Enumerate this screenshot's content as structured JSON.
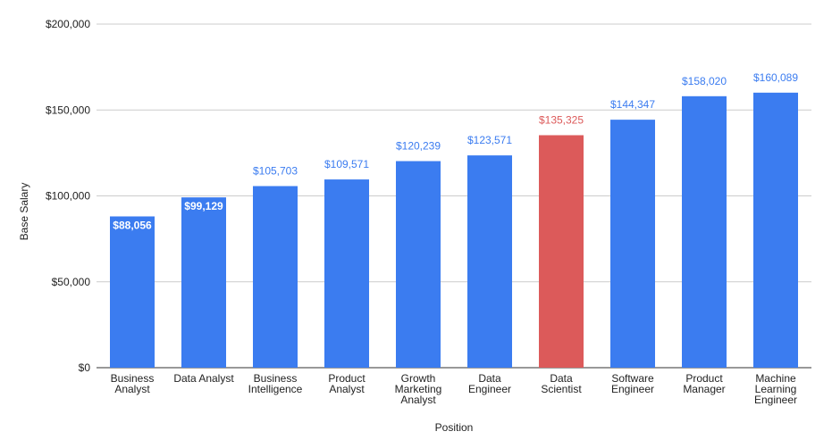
{
  "chart_data": {
    "type": "bar",
    "title": "",
    "xlabel": "Position",
    "ylabel": "Base Salary",
    "ylim": [
      0,
      200000
    ],
    "yticks": [
      0,
      50000,
      100000,
      150000,
      200000
    ],
    "ytick_labels": [
      "$0",
      "$50,000",
      "$100,000",
      "$150,000",
      "$200,000"
    ],
    "grid": true,
    "legend": "none",
    "categories": [
      [
        "Business",
        "Analyst"
      ],
      [
        "Data Analyst"
      ],
      [
        "Business",
        "Intelligence"
      ],
      [
        "Product",
        "Analyst"
      ],
      [
        "Growth",
        "Marketing",
        "Analyst"
      ],
      [
        "Data",
        "Engineer"
      ],
      [
        "Data",
        "Scientist"
      ],
      [
        "Software",
        "Engineer"
      ],
      [
        "Product",
        "Manager"
      ],
      [
        "Machine",
        "Learning",
        "Engineer"
      ]
    ],
    "values": [
      88056,
      99129,
      105703,
      109571,
      120239,
      123571,
      135325,
      144347,
      158020,
      160089
    ],
    "data_labels": [
      "$88,056",
      "$99,129",
      "$105,703",
      "$109,571",
      "$120,239",
      "$123,571",
      "$135,325",
      "$144,347",
      "$158,020",
      "$160,089"
    ],
    "label_inside": [
      true,
      true,
      false,
      false,
      false,
      false,
      false,
      false,
      false,
      false
    ],
    "highlight_index": 6,
    "colors": {
      "bar": "#3b7cf0",
      "highlight": "#dc5a5a",
      "label_outside": "#3b7cf0",
      "label_highlight": "#dc5a5a",
      "label_inside": "#ffffff",
      "grid": "#cccccc",
      "axis": "#333333"
    }
  }
}
